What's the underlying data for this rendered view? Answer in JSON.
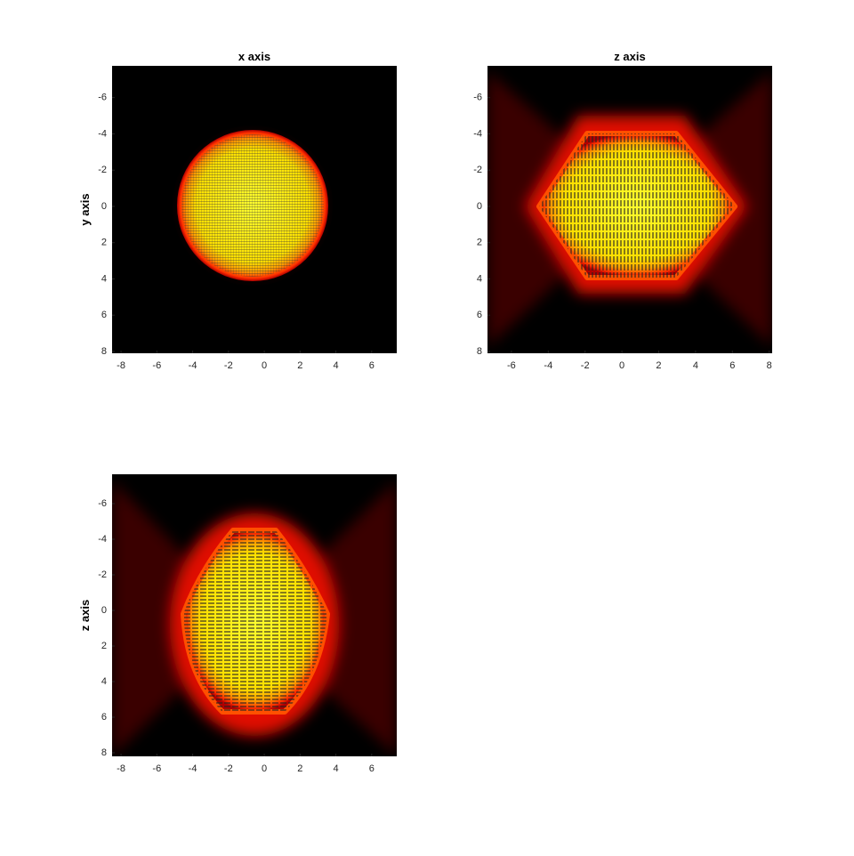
{
  "chart_data": [
    {
      "type": "image",
      "title": "x axis",
      "ylabel": "y axis",
      "xlim": [
        -8.5,
        7.4
      ],
      "ylim": [
        -7.75,
        8.1
      ],
      "yreverse": true,
      "xticks": [
        -8,
        -6,
        -4,
        -2,
        0,
        2,
        4,
        6
      ],
      "yticks": [
        -6,
        -4,
        -2,
        0,
        2,
        4,
        6,
        8
      ]
    },
    {
      "type": "image",
      "title": "z axis",
      "xlim": [
        -7.3,
        8.16
      ],
      "ylim": [
        -7.75,
        8.1
      ],
      "yreverse": true,
      "xticks": [
        -6,
        -4,
        -2,
        0,
        2,
        4,
        6,
        8
      ],
      "yticks": [
        -6,
        -4,
        -2,
        0,
        2,
        4,
        6,
        8
      ]
    },
    {
      "type": "image",
      "ylabel": "z axis",
      "xlim": [
        -8.5,
        7.4
      ],
      "ylim": [
        -7.65,
        8.2
      ],
      "yreverse": true,
      "xticks": [
        -8,
        -6,
        -4,
        -2,
        0,
        2,
        4,
        6
      ],
      "yticks": [
        -6,
        -4,
        -2,
        0,
        2,
        4,
        6,
        8
      ]
    }
  ]
}
